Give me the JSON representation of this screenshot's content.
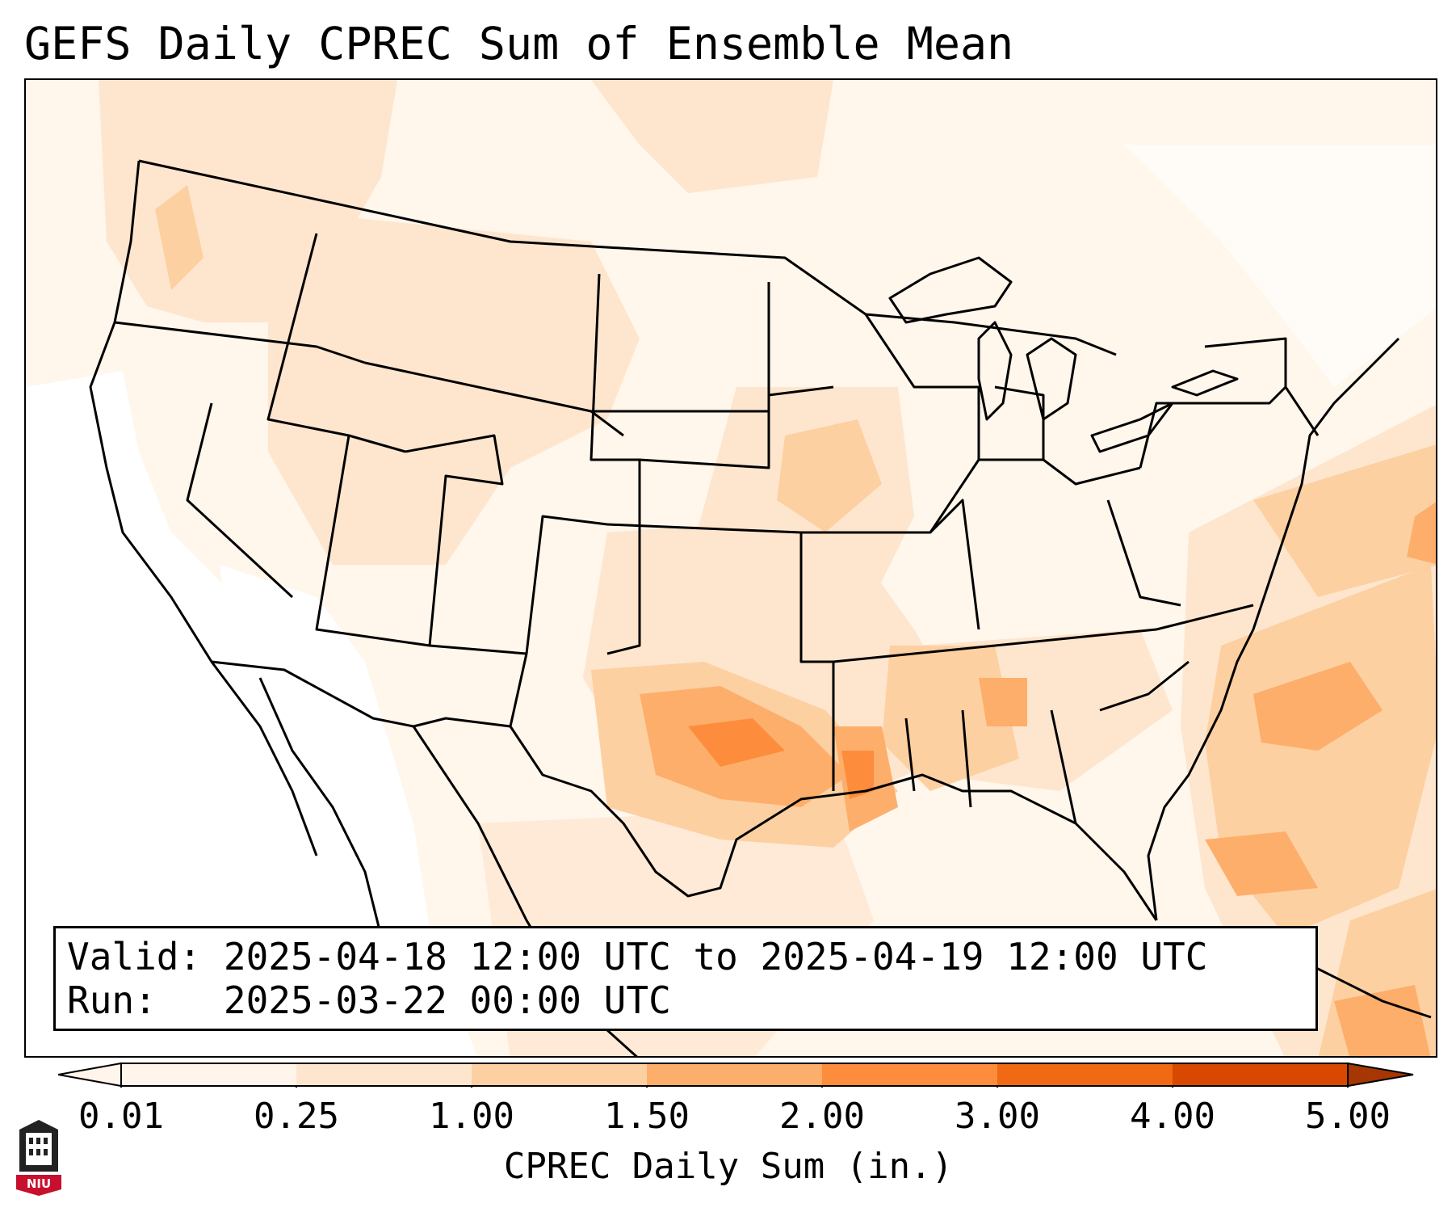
{
  "title": "GEFS Daily CPREC Sum of Ensemble Mean",
  "info": {
    "valid_label": "Valid:",
    "valid_range": "2025-04-18 12:00 UTC to 2025-04-19 12:00 UTC",
    "run_label": "Run:",
    "run_time": "2025-03-22 00:00 UTC"
  },
  "colorbar": {
    "label": "CPREC Daily Sum (in.)",
    "ticks": [
      "0.01",
      "0.25",
      "1.00",
      "1.50",
      "2.00",
      "3.00",
      "4.00",
      "5.00"
    ],
    "colors": [
      "#fff5eb",
      "#fee6ce",
      "#fdd0a2",
      "#fdae6b",
      "#fd8d3c",
      "#f16913",
      "#d94801",
      "#a63603"
    ]
  },
  "logo": {
    "text": "NIU"
  },
  "map": {
    "regions": [
      "Contiguous United States",
      "Gulf of Mexico",
      "Western Atlantic"
    ],
    "highlights": [
      {
        "region": "Northeast Texas / Arkansas / Louisiana",
        "level": "1.50"
      },
      {
        "region": "Alabama / Mississippi",
        "level": "1.00"
      },
      {
        "region": "Atlantic off Carolinas",
        "level": "1.50"
      },
      {
        "region": "Iowa / Missouri",
        "level": "0.25"
      }
    ]
  }
}
